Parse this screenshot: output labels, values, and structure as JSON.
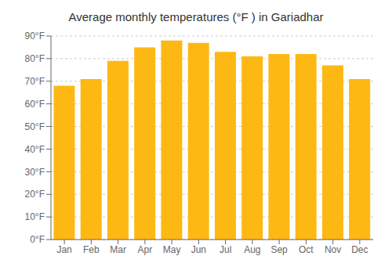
{
  "chart_data": {
    "type": "bar",
    "title": "Average monthly temperatures (°F ) in Gariadhar",
    "categories": [
      "Jan",
      "Feb",
      "Mar",
      "Apr",
      "May",
      "Jun",
      "Jul",
      "Aug",
      "Sep",
      "Oct",
      "Nov",
      "Dec"
    ],
    "values": [
      68,
      71,
      79,
      85,
      88,
      87,
      83,
      81,
      82,
      82,
      77,
      71
    ],
    "color": "#FDB813",
    "ylim": [
      0,
      90
    ],
    "yticks": [
      {
        "value": 0,
        "label": "0°F"
      },
      {
        "value": 10,
        "label": "10°F"
      },
      {
        "value": 20,
        "label": "20°F"
      },
      {
        "value": 30,
        "label": "30°F"
      },
      {
        "value": 40,
        "label": "40°F"
      },
      {
        "value": 50,
        "label": "50°F"
      },
      {
        "value": 60,
        "label": "60°F"
      },
      {
        "value": 70,
        "label": "70°F"
      },
      {
        "value": 80,
        "label": "80°F"
      },
      {
        "value": 90,
        "label": "90°F"
      }
    ],
    "grid": true
  }
}
